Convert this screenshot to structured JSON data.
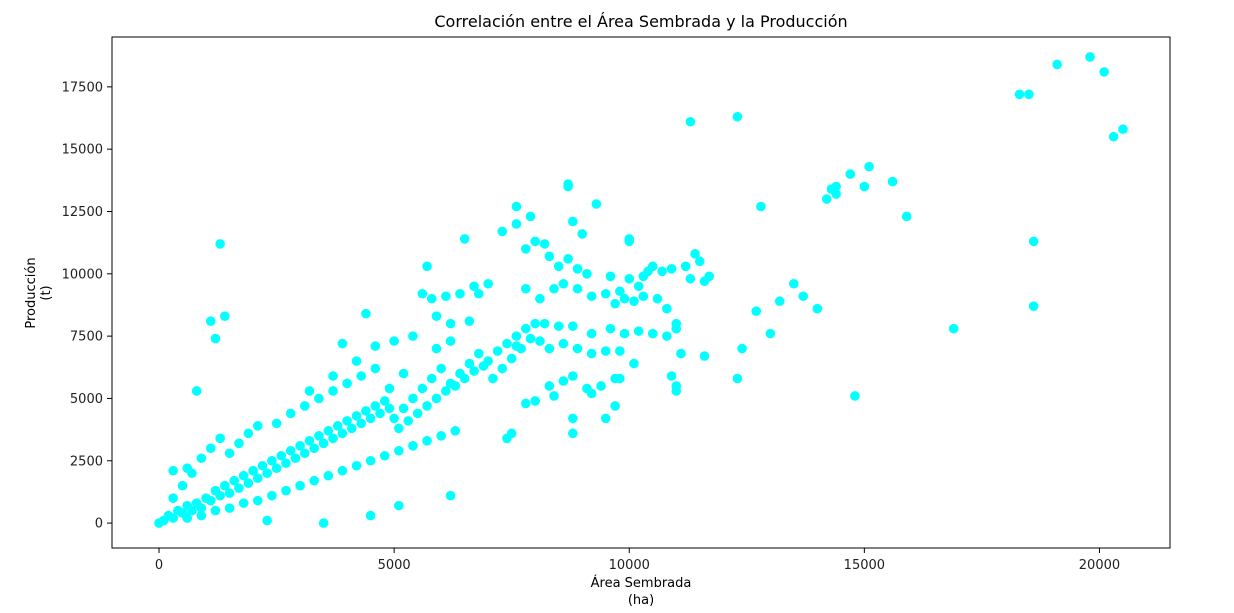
{
  "chart_data": {
    "type": "scatter",
    "title": "Correlación entre el Área Sembrada y la Producción",
    "xlabel_line1": "Área Sembrada",
    "xlabel_line2": "(ha)",
    "ylabel_line1": "Producción",
    "ylabel_line2": "(t)",
    "xlim": [
      -1000,
      21500
    ],
    "ylim": [
      -1000,
      19500
    ],
    "xticks": [
      0,
      5000,
      10000,
      15000,
      20000
    ],
    "yticks": [
      0,
      2500,
      5000,
      7500,
      10000,
      12500,
      15000,
      17500
    ],
    "grid": false,
    "marker_color": "#00ffff",
    "series": [
      {
        "points": [
          [
            0,
            0
          ],
          [
            100,
            100
          ],
          [
            200,
            300
          ],
          [
            300,
            200
          ],
          [
            400,
            500
          ],
          [
            500,
            400
          ],
          [
            600,
            700
          ],
          [
            700,
            500
          ],
          [
            800,
            800
          ],
          [
            900,
            600
          ],
          [
            1000,
            1000
          ],
          [
            1100,
            900
          ],
          [
            1200,
            1300
          ],
          [
            1300,
            1100
          ],
          [
            1400,
            1500
          ],
          [
            1500,
            1200
          ],
          [
            1600,
            1700
          ],
          [
            1700,
            1400
          ],
          [
            1800,
            1900
          ],
          [
            1900,
            1600
          ],
          [
            2000,
            2100
          ],
          [
            2100,
            1800
          ],
          [
            2200,
            2300
          ],
          [
            2300,
            2000
          ],
          [
            2400,
            2500
          ],
          [
            2500,
            2200
          ],
          [
            2600,
            2700
          ],
          [
            2700,
            2400
          ],
          [
            2800,
            2900
          ],
          [
            2900,
            2600
          ],
          [
            3000,
            3100
          ],
          [
            3100,
            2800
          ],
          [
            3200,
            3300
          ],
          [
            3300,
            3000
          ],
          [
            3400,
            3500
          ],
          [
            3500,
            3200
          ],
          [
            3600,
            3700
          ],
          [
            3700,
            3400
          ],
          [
            3800,
            3900
          ],
          [
            3900,
            3600
          ],
          [
            4000,
            4100
          ],
          [
            4100,
            3800
          ],
          [
            4200,
            4300
          ],
          [
            4300,
            4000
          ],
          [
            4400,
            4500
          ],
          [
            4500,
            4200
          ],
          [
            4600,
            4700
          ],
          [
            4700,
            4400
          ],
          [
            4800,
            4900
          ],
          [
            4900,
            4600
          ],
          [
            300,
            1000
          ],
          [
            500,
            1500
          ],
          [
            700,
            2000
          ],
          [
            900,
            2600
          ],
          [
            1100,
            3000
          ],
          [
            1300,
            3400
          ],
          [
            1500,
            2800
          ],
          [
            1700,
            3200
          ],
          [
            1900,
            3600
          ],
          [
            2100,
            3900
          ],
          [
            600,
            200
          ],
          [
            900,
            300
          ],
          [
            1200,
            500
          ],
          [
            1500,
            600
          ],
          [
            1800,
            800
          ],
          [
            2100,
            900
          ],
          [
            2400,
            1100
          ],
          [
            2700,
            1300
          ],
          [
            3000,
            1500
          ],
          [
            3300,
            1700
          ],
          [
            3600,
            1900
          ],
          [
            3900,
            2100
          ],
          [
            4200,
            2300
          ],
          [
            4500,
            2500
          ],
          [
            4800,
            2700
          ],
          [
            5100,
            2900
          ],
          [
            5400,
            3100
          ],
          [
            5700,
            3300
          ],
          [
            6000,
            3500
          ],
          [
            6300,
            3700
          ],
          [
            2500,
            4000
          ],
          [
            2800,
            4400
          ],
          [
            3100,
            4700
          ],
          [
            3400,
            5000
          ],
          [
            3700,
            5300
          ],
          [
            4000,
            5600
          ],
          [
            4300,
            5900
          ],
          [
            4600,
            6200
          ],
          [
            4900,
            5400
          ],
          [
            5200,
            6000
          ],
          [
            5000,
            4200
          ],
          [
            5200,
            4600
          ],
          [
            5400,
            5000
          ],
          [
            5600,
            5400
          ],
          [
            5800,
            5800
          ],
          [
            6000,
            6200
          ],
          [
            6200,
            5600
          ],
          [
            6400,
            6000
          ],
          [
            6600,
            6400
          ],
          [
            6800,
            6800
          ],
          [
            5100,
            3800
          ],
          [
            5300,
            4100
          ],
          [
            5500,
            4400
          ],
          [
            5700,
            4700
          ],
          [
            5900,
            5000
          ],
          [
            6100,
            5300
          ],
          [
            6300,
            5500
          ],
          [
            6500,
            5800
          ],
          [
            6700,
            6100
          ],
          [
            6900,
            6300
          ],
          [
            7000,
            6500
          ],
          [
            7200,
            6900
          ],
          [
            7400,
            7200
          ],
          [
            7600,
            7500
          ],
          [
            7800,
            7800
          ],
          [
            8000,
            8000
          ],
          [
            7100,
            5800
          ],
          [
            7300,
            6200
          ],
          [
            7500,
            6600
          ],
          [
            7700,
            7000
          ],
          [
            5600,
            9200
          ],
          [
            5800,
            9000
          ],
          [
            6100,
            9100
          ],
          [
            6400,
            9200
          ],
          [
            6700,
            9500
          ],
          [
            7000,
            9600
          ],
          [
            6800,
            9200
          ],
          [
            5900,
            8300
          ],
          [
            6200,
            8000
          ],
          [
            6600,
            8100
          ],
          [
            5700,
            10300
          ],
          [
            6500,
            11400
          ],
          [
            7300,
            11700
          ],
          [
            7600,
            12000
          ],
          [
            7600,
            12700
          ],
          [
            7900,
            12300
          ],
          [
            8000,
            11300
          ],
          [
            7800,
            11000
          ],
          [
            8200,
            11200
          ],
          [
            8700,
            13600
          ],
          [
            8700,
            13500
          ],
          [
            8800,
            12100
          ],
          [
            9000,
            11600
          ],
          [
            9300,
            12800
          ],
          [
            8300,
            10700
          ],
          [
            8500,
            10300
          ],
          [
            8700,
            10600
          ],
          [
            8900,
            10200
          ],
          [
            9100,
            10000
          ],
          [
            9600,
            9900
          ],
          [
            7800,
            9400
          ],
          [
            8100,
            9000
          ],
          [
            8400,
            9400
          ],
          [
            8600,
            9600
          ],
          [
            8900,
            9400
          ],
          [
            9200,
            9100
          ],
          [
            9500,
            9200
          ],
          [
            9800,
            9300
          ],
          [
            10000,
            9800
          ],
          [
            10200,
            9500
          ],
          [
            10000,
            11300
          ],
          [
            10000,
            11400
          ],
          [
            10300,
            9900
          ],
          [
            10400,
            10100
          ],
          [
            10500,
            10300
          ],
          [
            10700,
            10100
          ],
          [
            10900,
            10200
          ],
          [
            11200,
            10300
          ],
          [
            11400,
            10800
          ],
          [
            11500,
            10500
          ],
          [
            11300,
            9800
          ],
          [
            11600,
            9700
          ],
          [
            11700,
            9900
          ],
          [
            10100,
            8900
          ],
          [
            10300,
            9100
          ],
          [
            9700,
            8800
          ],
          [
            9900,
            9000
          ],
          [
            10600,
            9000
          ],
          [
            10800,
            8600
          ],
          [
            11000,
            8000
          ],
          [
            8200,
            8000
          ],
          [
            8500,
            7900
          ],
          [
            8800,
            7900
          ],
          [
            9200,
            7600
          ],
          [
            9600,
            7800
          ],
          [
            9900,
            7600
          ],
          [
            10200,
            7700
          ],
          [
            10500,
            7600
          ],
          [
            10800,
            7500
          ],
          [
            11000,
            7800
          ],
          [
            7600,
            7100
          ],
          [
            7900,
            7400
          ],
          [
            8100,
            7300
          ],
          [
            8300,
            7000
          ],
          [
            8600,
            7200
          ],
          [
            8900,
            7000
          ],
          [
            9200,
            6800
          ],
          [
            9500,
            6900
          ],
          [
            9800,
            6900
          ],
          [
            10100,
            6400
          ],
          [
            7400,
            3400
          ],
          [
            7500,
            3600
          ],
          [
            7800,
            4800
          ],
          [
            8000,
            4900
          ],
          [
            8400,
            5100
          ],
          [
            8800,
            3600
          ],
          [
            8800,
            4200
          ],
          [
            9200,
            5200
          ],
          [
            9500,
            4200
          ],
          [
            9700,
            4700
          ],
          [
            8300,
            5500
          ],
          [
            8600,
            5700
          ],
          [
            8800,
            5900
          ],
          [
            9100,
            5400
          ],
          [
            9400,
            5500
          ],
          [
            9700,
            5800
          ],
          [
            9800,
            5800
          ],
          [
            10900,
            5900
          ],
          [
            11000,
            5500
          ],
          [
            11000,
            5300
          ],
          [
            11100,
            6800
          ],
          [
            11600,
            6700
          ],
          [
            12300,
            5800
          ],
          [
            12400,
            7000
          ],
          [
            12700,
            8500
          ],
          [
            13000,
            7600
          ],
          [
            13200,
            8900
          ],
          [
            13500,
            9600
          ],
          [
            13700,
            9100
          ],
          [
            14000,
            8600
          ],
          [
            11300,
            16100
          ],
          [
            12300,
            16300
          ],
          [
            12800,
            12700
          ],
          [
            14200,
            13000
          ],
          [
            14300,
            13400
          ],
          [
            14400,
            13500
          ],
          [
            14400,
            13200
          ],
          [
            14700,
            14000
          ],
          [
            15000,
            13500
          ],
          [
            15100,
            14300
          ],
          [
            15600,
            13700
          ],
          [
            15900,
            12300
          ],
          [
            14800,
            5100
          ],
          [
            16900,
            7800
          ],
          [
            18300,
            17200
          ],
          [
            18500,
            17200
          ],
          [
            18600,
            11300
          ],
          [
            18600,
            8700
          ],
          [
            19100,
            18400
          ],
          [
            19800,
            18700
          ],
          [
            20100,
            18100
          ],
          [
            20300,
            15500
          ],
          [
            20500,
            15800
          ],
          [
            1300,
            11200
          ],
          [
            1100,
            8100
          ],
          [
            1400,
            8300
          ],
          [
            1200,
            7400
          ],
          [
            800,
            5300
          ],
          [
            300,
            2100
          ],
          [
            600,
            2200
          ],
          [
            4500,
            300
          ],
          [
            3500,
            0
          ],
          [
            5100,
            700
          ],
          [
            6200,
            1100
          ],
          [
            2300,
            100
          ],
          [
            4400,
            8400
          ],
          [
            3900,
            7200
          ],
          [
            4600,
            7100
          ],
          [
            5000,
            7300
          ],
          [
            5400,
            7500
          ],
          [
            5900,
            7000
          ],
          [
            6200,
            7300
          ],
          [
            3200,
            5300
          ],
          [
            3700,
            5900
          ],
          [
            4200,
            6500
          ]
        ]
      }
    ]
  }
}
